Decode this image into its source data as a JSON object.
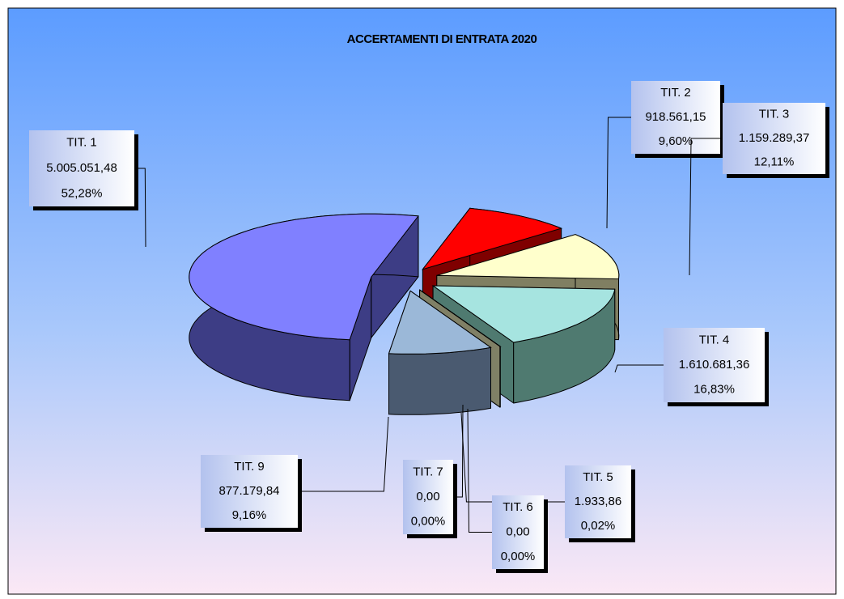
{
  "chart_data": {
    "type": "pie3d",
    "title": "ACCERTAMENTI DI ENTRATA 2020",
    "categories": [
      "TIT. 1",
      "TIT. 2",
      "TIT. 3",
      "TIT. 4",
      "TIT. 5",
      "TIT. 6",
      "TIT. 7",
      "TIT. 9"
    ],
    "values": [
      5005051.48,
      918561.15,
      1159289.37,
      1610681.36,
      1933.86,
      0,
      0,
      877179.84
    ],
    "value_labels": [
      "5.005.051,48",
      "918.561,15",
      "1.159.289,37",
      "1.610.681,36",
      "1.933,86",
      "0,00",
      "0,00",
      "877.179,84"
    ],
    "percents": [
      52.28,
      9.6,
      12.11,
      16.83,
      0.02,
      0,
      0,
      9.16
    ],
    "percent_labels": [
      "52,28%",
      "9,60%",
      "12,11%",
      "16,83%",
      "0,02%",
      "0,00%",
      "0,00%",
      "9,16%"
    ],
    "colors": [
      "#8080ff",
      "#ff0000",
      "#ffffcc",
      "#a6e4e0",
      "#50509a",
      "#993366",
      "#ffffcc",
      "#9bb8d8"
    ],
    "side_colors": [
      "#3d3d85",
      "#7f0000",
      "#807f62",
      "#4f7a70",
      "#303070",
      "#4c1933",
      "#808066",
      "#4a5a70"
    ]
  }
}
